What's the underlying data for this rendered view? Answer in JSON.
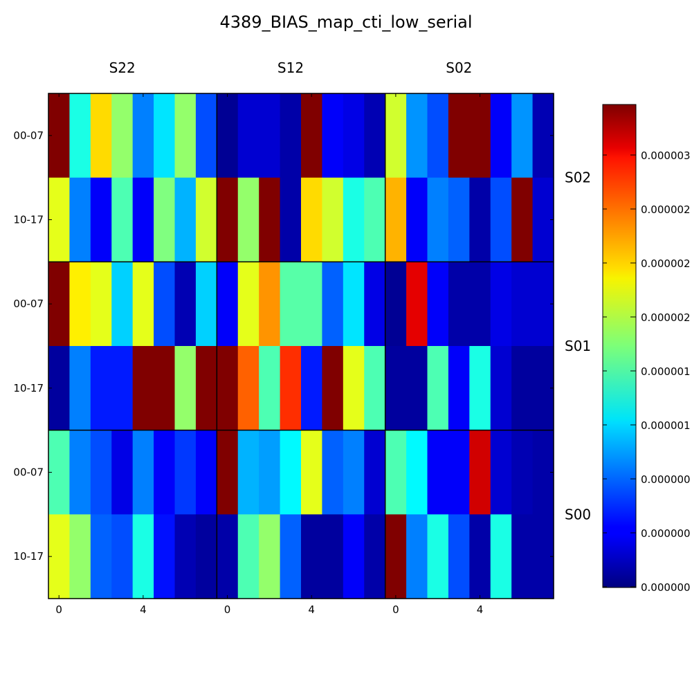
{
  "chart_data": {
    "type": "heatmap",
    "title": "4389_BIAS_map_cti_low_serial",
    "column_groups": [
      "S22",
      "S12",
      "S02"
    ],
    "row_groups": [
      "S02",
      "S01",
      "S00"
    ],
    "row_tick_labels": [
      "00-07",
      "10-17"
    ],
    "x_tick_labels": [
      "0",
      "4"
    ],
    "colorbar": {
      "colormap": "jet",
      "tick_labels": [
        "0.000000",
        "0.000000",
        "0.000000",
        "0.000001",
        "0.000001",
        "0.000002",
        "0.000002",
        "0.000002",
        "0.000003"
      ]
    },
    "values_note": "normalized 0-1 color level (display range)",
    "values": [
      [
        1.0,
        0.4,
        0.66,
        0.52,
        0.25,
        0.35,
        0.52,
        0.2,
        0.02,
        0.08,
        0.08,
        0.04,
        1.0,
        0.12,
        0.1,
        0.05,
        0.58,
        0.27,
        0.2,
        1.0,
        1.0,
        0.12,
        0.27,
        0.05
      ],
      [
        0.6,
        0.25,
        0.12,
        0.45,
        0.12,
        0.5,
        0.3,
        0.58,
        1.0,
        0.52,
        1.0,
        0.04,
        0.66,
        0.58,
        0.4,
        0.45,
        0.7,
        0.12,
        0.25,
        0.22,
        0.04,
        0.2,
        1.0,
        0.08
      ],
      [
        1.0,
        0.64,
        0.6,
        0.33,
        0.6,
        0.2,
        0.05,
        0.33,
        0.12,
        0.6,
        0.73,
        0.46,
        0.46,
        0.22,
        0.35,
        0.1,
        0.02,
        0.9,
        0.12,
        0.04,
        0.04,
        0.1,
        0.08,
        0.08
      ],
      [
        0.03,
        0.25,
        0.15,
        0.15,
        1.0,
        1.0,
        0.52,
        1.0,
        1.0,
        0.78,
        0.45,
        0.83,
        0.15,
        1.0,
        0.6,
        0.45,
        0.03,
        0.03,
        0.45,
        0.12,
        0.4,
        0.08,
        0.03,
        0.03
      ],
      [
        0.45,
        0.25,
        0.2,
        0.1,
        0.25,
        0.12,
        0.18,
        0.12,
        1.0,
        0.3,
        0.28,
        0.37,
        0.6,
        0.22,
        0.25,
        0.08,
        0.45,
        0.37,
        0.12,
        0.12,
        0.92,
        0.08,
        0.05,
        0.04
      ],
      [
        0.6,
        0.52,
        0.22,
        0.2,
        0.4,
        0.14,
        0.05,
        0.03,
        0.04,
        0.45,
        0.52,
        0.22,
        0.03,
        0.03,
        0.12,
        0.04,
        1.0,
        0.25,
        0.4,
        0.2,
        0.04,
        0.4,
        0.04,
        0.04
      ]
    ]
  }
}
